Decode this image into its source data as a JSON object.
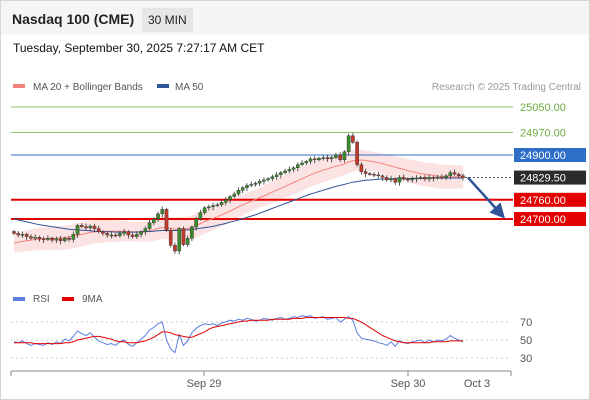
{
  "header": {
    "title": "Nasdaq 100 (CME)",
    "interval": "30 MIN",
    "datetime": "Tuesday, September 30, 2025 7:27:17 AM CET"
  },
  "copyright": "Research © 2025 Trading Central",
  "colors": {
    "resistance": "#6aaf3d",
    "pivot": "#2f6ec8",
    "support": "#e20000",
    "last": "#2b2b2b",
    "candle_up": "#3a8a2a",
    "candle_down": "#c0392b",
    "bollinger_fill": "#fbd9d9",
    "ma20": "#f4827d",
    "ma50": "#2f5597",
    "rsi": "#5b7fe0",
    "rsi_ma": "#e20000",
    "arrow": "#2f5597"
  },
  "chart_data": [
    {
      "type": "candlestick",
      "title": "Nasdaq 100 (CME)",
      "legend": [
        {
          "name": "MA 20 + Bollinger Bands",
          "color": "#f4827d"
        },
        {
          "name": "MA 50",
          "color": "#2f5597"
        }
      ],
      "legend_position": "top-left",
      "x_ticks": [
        "Sep 29",
        "Sep 30",
        "Oct 3"
      ],
      "ylim": [
        24560,
        25100
      ],
      "levels": [
        {
          "label": "25050.00",
          "value": 25050,
          "kind": "resistance"
        },
        {
          "label": "24970.00",
          "value": 24970,
          "kind": "resistance"
        },
        {
          "label": "24900.00",
          "value": 24900,
          "kind": "pivot"
        },
        {
          "label": "24829.50",
          "value": 24829.5,
          "kind": "last"
        },
        {
          "label": "24760.00",
          "value": 24760,
          "kind": "support"
        },
        {
          "label": "24700.00",
          "value": 24700,
          "kind": "support"
        }
      ],
      "close": [
        24655,
        24650,
        24652,
        24645,
        24640,
        24643,
        24638,
        24636,
        24640,
        24634,
        24638,
        24632,
        24640,
        24636,
        24652,
        24680,
        24676,
        24672,
        24678,
        24670,
        24660,
        24655,
        24650,
        24650,
        24648,
        24655,
        24660,
        24650,
        24645,
        24652,
        24660,
        24670,
        24688,
        24700,
        24716,
        24730,
        24665,
        24618,
        24600,
        24670,
        24620,
        24640,
        24675,
        24700,
        24720,
        24735,
        24738,
        24742,
        24745,
        24752,
        24760,
        24770,
        24778,
        24790,
        24798,
        24805,
        24808,
        24812,
        24818,
        24822,
        24826,
        24832,
        24838,
        24845,
        24850,
        24855,
        24860,
        24870,
        24875,
        24880,
        24888,
        24885,
        24890,
        24892,
        24888,
        24892,
        24900,
        24885,
        24910,
        24960,
        24940,
        24870,
        24848,
        24842,
        24840,
        24838,
        24835,
        24830,
        24822,
        24826,
        24815,
        24830,
        24825,
        24822,
        24826,
        24828,
        24830,
        24825,
        24830,
        24828,
        24831,
        24830,
        24835,
        24845,
        24840,
        24835,
        24829.5
      ],
      "ma20": [
        24625,
        24628,
        24630,
        24632,
        24634,
        24636,
        24637,
        24638,
        24639,
        24640,
        24640,
        24641,
        24642,
        24644,
        24646,
        24649,
        24652,
        24655,
        24658,
        24660,
        24661,
        24662,
        24662,
        24662,
        24662,
        24662,
        24662,
        24661,
        24660,
        24660,
        24660,
        24661,
        24663,
        24666,
        24670,
        24673,
        24673,
        24671,
        24668,
        24670,
        24669,
        24670,
        24674,
        24680,
        24686,
        24692,
        24697,
        24702,
        24707,
        24713,
        24719,
        24725,
        24731,
        24738,
        24744,
        24750,
        24756,
        24761,
        24767,
        24772,
        24778,
        24784,
        24790,
        24796,
        24802,
        24808,
        24814,
        24820,
        24826,
        24832,
        24838,
        24843,
        24848,
        24853,
        24857,
        24861,
        24865,
        24868,
        24872,
        24878,
        24882,
        24884,
        24884,
        24883,
        24881,
        24879,
        24876,
        24873,
        24869,
        24866,
        24862,
        24858,
        24855,
        24851,
        24848,
        24845,
        24842,
        24840,
        24838,
        24836,
        24834,
        24833,
        24832,
        24832,
        24832,
        24832,
        24832
      ],
      "ma50": [
        24700,
        24697,
        24694,
        24691,
        24688,
        24685,
        24682,
        24680,
        24678,
        24676,
        24674,
        24672,
        24670,
        24668,
        24667,
        24666,
        24665,
        24664,
        24663,
        24662,
        24661,
        24660,
        24660,
        24660,
        24659,
        24659,
        24659,
        24659,
        24659,
        24659,
        24660,
        24660,
        24661,
        24662,
        24663,
        24664,
        24664,
        24664,
        24664,
        24665,
        24665,
        24666,
        24667,
        24669,
        24671,
        24673,
        24675,
        24677,
        24680,
        24683,
        24686,
        24690,
        24693,
        24697,
        24701,
        24705,
        24709,
        24713,
        24718,
        24723,
        24728,
        24733,
        24738,
        24743,
        24748,
        24753,
        24758,
        24763,
        24768,
        24773,
        24778,
        24782,
        24786,
        24790,
        24794,
        24798,
        24802,
        24805,
        24808,
        24812,
        24815,
        24817,
        24819,
        24821,
        24822,
        24823,
        24824,
        24825,
        24825,
        24826,
        24826,
        24826,
        24826,
        24826,
        24827,
        24827,
        24827,
        24827,
        24827,
        24828,
        24828,
        24828,
        24828,
        24828,
        24828,
        24828,
        24828
      ],
      "projection": {
        "from": 24829.5,
        "to": 24700
      }
    },
    {
      "type": "line",
      "legend": [
        {
          "name": "RSI",
          "color": "#5b7fe0"
        },
        {
          "name": "9MA",
          "color": "#e20000"
        }
      ],
      "ylim": [
        20,
        85
      ],
      "y_ticks": [
        "70",
        "50",
        "30"
      ],
      "y_tick_values": [
        70,
        50,
        30
      ],
      "series": [
        {
          "name": "RSI",
          "values": [
            48,
            47,
            49,
            46,
            44,
            46,
            45,
            44,
            47,
            45,
            48,
            46,
            51,
            49,
            54,
            60,
            57,
            55,
            58,
            53,
            49,
            47,
            45,
            46,
            44,
            48,
            50,
            45,
            43,
            47,
            51,
            55,
            61,
            64,
            68,
            70,
            50,
            40,
            36,
            56,
            44,
            49,
            58,
            63,
            66,
            68,
            67,
            68,
            66,
            69,
            70,
            72,
            71,
            73,
            72,
            74,
            73,
            71,
            72,
            74,
            73,
            72,
            74,
            75,
            73,
            74,
            76,
            75,
            77,
            76,
            77,
            74,
            75,
            76,
            73,
            74,
            75,
            70,
            73,
            76,
            72,
            58,
            52,
            51,
            50,
            49,
            47,
            46,
            44,
            48,
            43,
            49,
            47,
            46,
            48,
            49,
            50,
            47,
            50,
            48,
            50,
            49,
            51,
            55,
            52,
            50,
            48
          ]
        },
        {
          "name": "9MA",
          "values": [
            47,
            47,
            47,
            47,
            47,
            46,
            46,
            46,
            46,
            46,
            46,
            46,
            47,
            47,
            48,
            50,
            51,
            52,
            53,
            54,
            54,
            53,
            52,
            51,
            49,
            48,
            48,
            47,
            47,
            47,
            48,
            49,
            51,
            53,
            56,
            59,
            59,
            58,
            56,
            55,
            54,
            53,
            53,
            55,
            57,
            59,
            62,
            64,
            65,
            66,
            67,
            68,
            69,
            70,
            71,
            71,
            72,
            72,
            72,
            72,
            72,
            73,
            73,
            73,
            73,
            73,
            74,
            74,
            74,
            75,
            75,
            75,
            75,
            75,
            75,
            75,
            75,
            75,
            75,
            74,
            74,
            72,
            70,
            67,
            64,
            61,
            58,
            55,
            53,
            51,
            49,
            48,
            47,
            47,
            47,
            47,
            47,
            47,
            47,
            48,
            48,
            48,
            48,
            49,
            49,
            49,
            49
          ]
        }
      ]
    }
  ]
}
